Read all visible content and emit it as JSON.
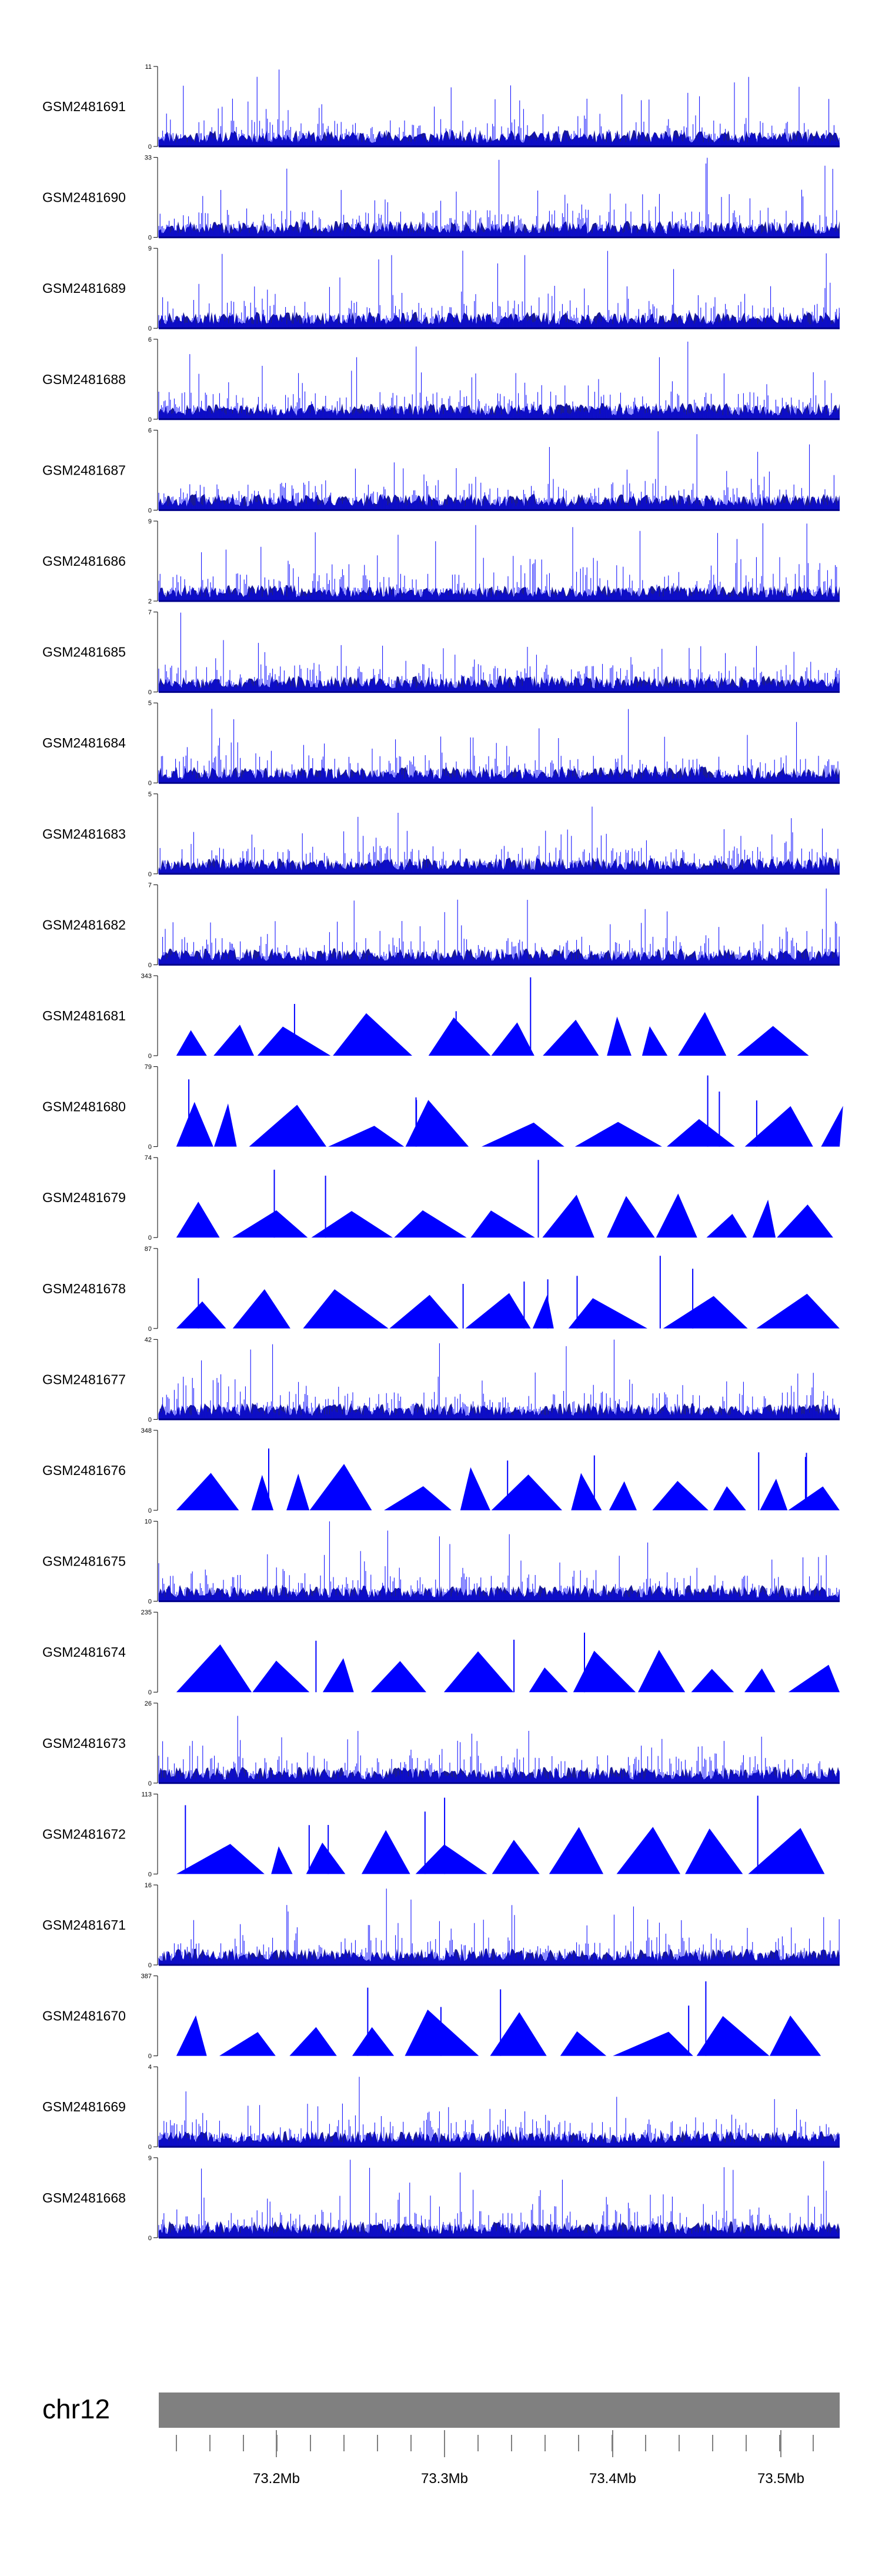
{
  "chart_data": {
    "type": "area",
    "title": "",
    "xlabel": "",
    "ylabel": "",
    "chromosome": "chr12",
    "x_ticks": [
      "73.2Mb",
      "73.3Mb",
      "73.4Mb",
      "73.5Mb"
    ],
    "colors": {
      "coverage": "#0000ff",
      "ideogram": "#808080",
      "axis": "#000000"
    },
    "tracks": [
      {
        "name": "GSM2481691",
        "ymax": "11",
        "ymin": "0",
        "style": "dense",
        "seed": 11
      },
      {
        "name": "GSM2481690",
        "ymax": "33",
        "ymin": "0",
        "style": "dense",
        "seed": 12
      },
      {
        "name": "GSM2481689",
        "ymax": "9",
        "ymin": "0",
        "style": "dense",
        "seed": 13
      },
      {
        "name": "GSM2481688",
        "ymax": "6",
        "ymin": "0",
        "style": "dense",
        "seed": 14
      },
      {
        "name": "GSM2481687",
        "ymax": "6",
        "ymin": "0",
        "style": "dense",
        "seed": 15
      },
      {
        "name": "GSM2481686",
        "ymax": "9",
        "ymin": "2",
        "style": "dense",
        "seed": 16
      },
      {
        "name": "GSM2481685",
        "ymax": "7",
        "ymin": "0",
        "style": "dense",
        "seed": 17
      },
      {
        "name": "GSM2481684",
        "ymax": "5",
        "ymin": "0",
        "style": "dense",
        "seed": 18
      },
      {
        "name": "GSM2481683",
        "ymax": "5",
        "ymin": "0",
        "style": "dense",
        "seed": 19
      },
      {
        "name": "GSM2481682",
        "ymax": "7",
        "ymin": "0",
        "style": "dense",
        "seed": 20
      },
      {
        "name": "GSM2481681",
        "ymax": "343",
        "ymin": "0",
        "style": "sparse",
        "seed": 21
      },
      {
        "name": "GSM2481680",
        "ymax": "79",
        "ymin": "0",
        "style": "sparse",
        "seed": 22
      },
      {
        "name": "GSM2481679",
        "ymax": "74",
        "ymin": "0",
        "style": "sparse",
        "seed": 23
      },
      {
        "name": "GSM2481678",
        "ymax": "87",
        "ymin": "0",
        "style": "sparse",
        "seed": 24
      },
      {
        "name": "GSM2481677",
        "ymax": "42",
        "ymin": "0",
        "style": "dense",
        "seed": 25
      },
      {
        "name": "GSM2481676",
        "ymax": "348",
        "ymin": "0",
        "style": "sparse",
        "seed": 26
      },
      {
        "name": "GSM2481675",
        "ymax": "10",
        "ymin": "0",
        "style": "dense",
        "seed": 27
      },
      {
        "name": "GSM2481674",
        "ymax": "235",
        "ymin": "0",
        "style": "sparse",
        "seed": 28
      },
      {
        "name": "GSM2481673",
        "ymax": "26",
        "ymin": "0",
        "style": "dense",
        "seed": 29
      },
      {
        "name": "GSM2481672",
        "ymax": "113",
        "ymin": "0",
        "style": "sparse",
        "seed": 30
      },
      {
        "name": "GSM2481671",
        "ymax": "16",
        "ymin": "0",
        "style": "dense",
        "seed": 31
      },
      {
        "name": "GSM2481670",
        "ymax": "387",
        "ymin": "0",
        "style": "sparse",
        "seed": 32
      },
      {
        "name": "GSM2481669",
        "ymax": "4",
        "ymin": "0",
        "style": "dense",
        "seed": 33
      },
      {
        "name": "GSM2481668",
        "ymax": "9",
        "ymin": "0",
        "style": "dense",
        "seed": 34
      }
    ]
  }
}
